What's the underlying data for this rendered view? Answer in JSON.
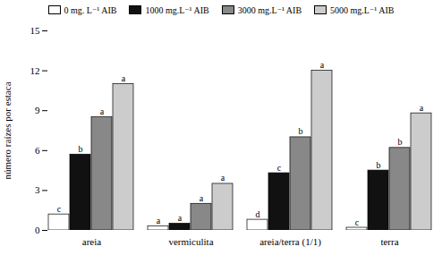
{
  "chart_data": {
    "type": "bar",
    "categories": [
      "areia",
      "vermiculita",
      "areia/terra (1/1)",
      "terra"
    ],
    "series": [
      {
        "name": "0 mg. L⁻¹ AIB",
        "color": "#ffffff",
        "values": [
          1.2,
          0.3,
          0.8,
          0.2
        ],
        "annotations": [
          "c",
          "a",
          "d",
          "c"
        ]
      },
      {
        "name": "1000 mg.L⁻¹ AIB",
        "color": "#111111",
        "values": [
          5.7,
          0.5,
          4.3,
          4.5
        ],
        "annotations": [
          "b",
          "a",
          "c",
          "b"
        ]
      },
      {
        "name": "3000 mg.L⁻¹ AIB",
        "color": "#888888",
        "values": [
          8.5,
          2.0,
          7.0,
          6.2
        ],
        "annotations": [
          "a",
          "a",
          "b",
          "b"
        ]
      },
      {
        "name": "5000 mg.L⁻¹ AIB",
        "color": "#cccccc",
        "values": [
          11.0,
          3.5,
          12.0,
          8.8
        ],
        "annotations": [
          "a",
          "a",
          "a",
          "a"
        ]
      }
    ],
    "ylabel": "número raízes por estaca",
    "ylim": [
      0,
      15
    ],
    "yticks": [
      0,
      3,
      6,
      9,
      12,
      15
    ],
    "grid": false,
    "legend": "top"
  }
}
